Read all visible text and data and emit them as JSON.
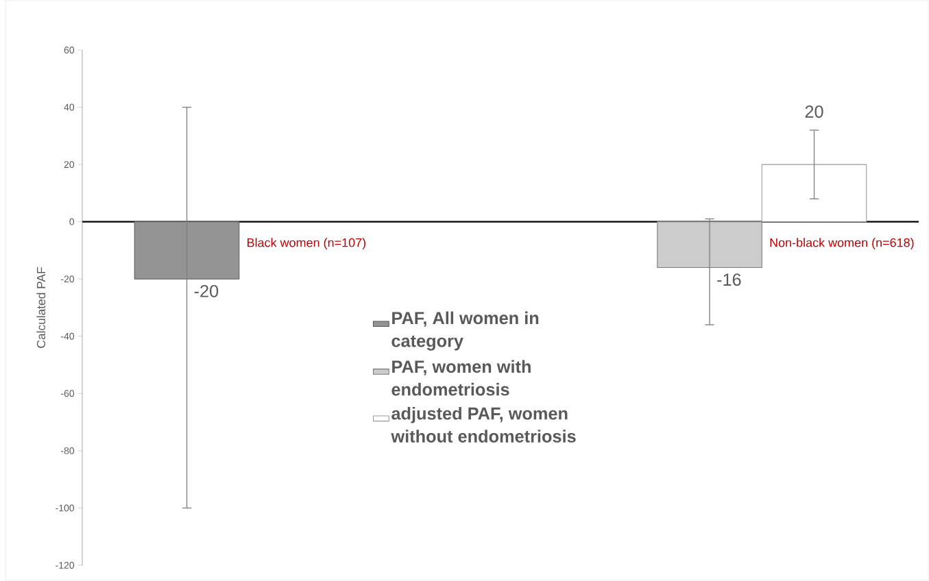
{
  "chart_data": {
    "type": "bar",
    "ylabel": "Calculated PAF",
    "categories": [
      "Black women (n=107)",
      "Non-black women (n=618)"
    ],
    "series": [
      {
        "name": "PAF, All women in category",
        "color": "#949494",
        "values": [
          -20,
          null
        ],
        "errors": [
          [
            -100,
            40
          ],
          null
        ]
      },
      {
        "name": "PAF, women with endometriosis",
        "color": "#cccccc",
        "values": [
          null,
          -16
        ],
        "errors": [
          null,
          [
            -36,
            1
          ]
        ]
      },
      {
        "name": "adjusted PAF, women without endometriosis",
        "color": "#ffffff",
        "values": [
          null,
          20
        ],
        "errors": [
          null,
          [
            8,
            32
          ]
        ]
      }
    ],
    "ylim": [
      -120,
      60
    ],
    "yticks": [
      -120,
      -100,
      -80,
      -60,
      -40,
      -20,
      0,
      20,
      40,
      60
    ],
    "legend": "bottom",
    "data_labels": true
  }
}
